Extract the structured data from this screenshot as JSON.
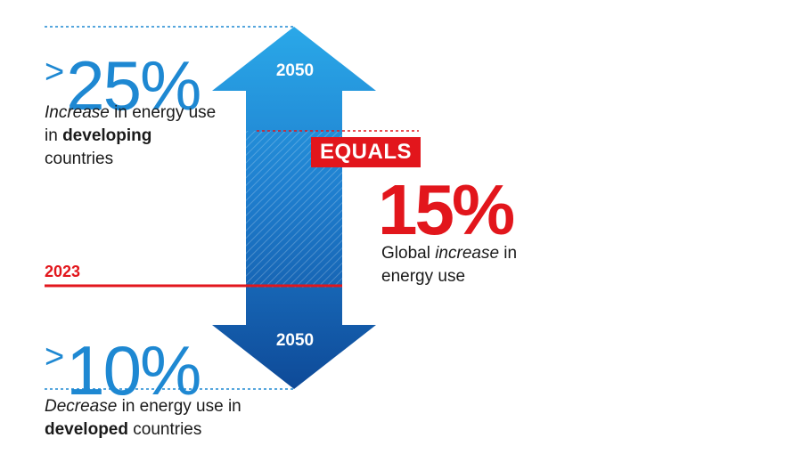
{
  "top_stat": {
    "prefix": ">",
    "value": "25%",
    "description_parts": [
      "Increase",
      " in energy use in ",
      "developing",
      " countries"
    ]
  },
  "bottom_stat": {
    "prefix": ">",
    "value": "10%",
    "description_parts": [
      "Decrease",
      " in energy use in ",
      "developed",
      " countries"
    ]
  },
  "arrow": {
    "top_year": "2050",
    "bottom_year": "2050"
  },
  "baseline_year": "2023",
  "equals_label": "EQUALS",
  "result_stat": {
    "value": "15%",
    "description_parts": [
      "Global ",
      "increase",
      " in energy use"
    ]
  },
  "colors": {
    "blue_light": "#27a6e6",
    "blue_dark": "#0f4d9c",
    "text_blue": "#1e88d2",
    "red": "#e2161c"
  }
}
